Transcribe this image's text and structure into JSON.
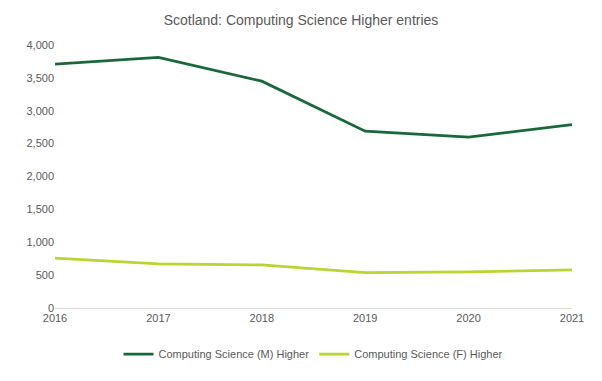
{
  "chart_data": {
    "type": "line",
    "title": "Scotland: Computing Science Higher entries",
    "categories": [
      "2016",
      "2017",
      "2018",
      "2019",
      "2020",
      "2021"
    ],
    "series": [
      {
        "name": "Computing Science (M) Higher",
        "color": "#17693a",
        "values": [
          3710,
          3810,
          3450,
          2690,
          2600,
          2790
        ]
      },
      {
        "name": "Computing Science (F) Higher",
        "color": "#b8d531",
        "values": [
          760,
          670,
          655,
          540,
          550,
          580
        ]
      }
    ],
    "ylim": [
      0,
      4000
    ],
    "yticks": [
      0,
      500,
      {
        "value": 1000,
        "label": "1,000"
      },
      {
        "value": 1500,
        "label": "1,500"
      },
      {
        "value": 2000,
        "label": "2,000"
      },
      {
        "value": 2500,
        "label": "2,500"
      },
      {
        "value": 3000,
        "label": "3,000"
      },
      {
        "value": 3500,
        "label": "3,500"
      },
      {
        "value": 4000,
        "label": "4,000"
      }
    ],
    "grid": false,
    "legend": "bottom"
  }
}
